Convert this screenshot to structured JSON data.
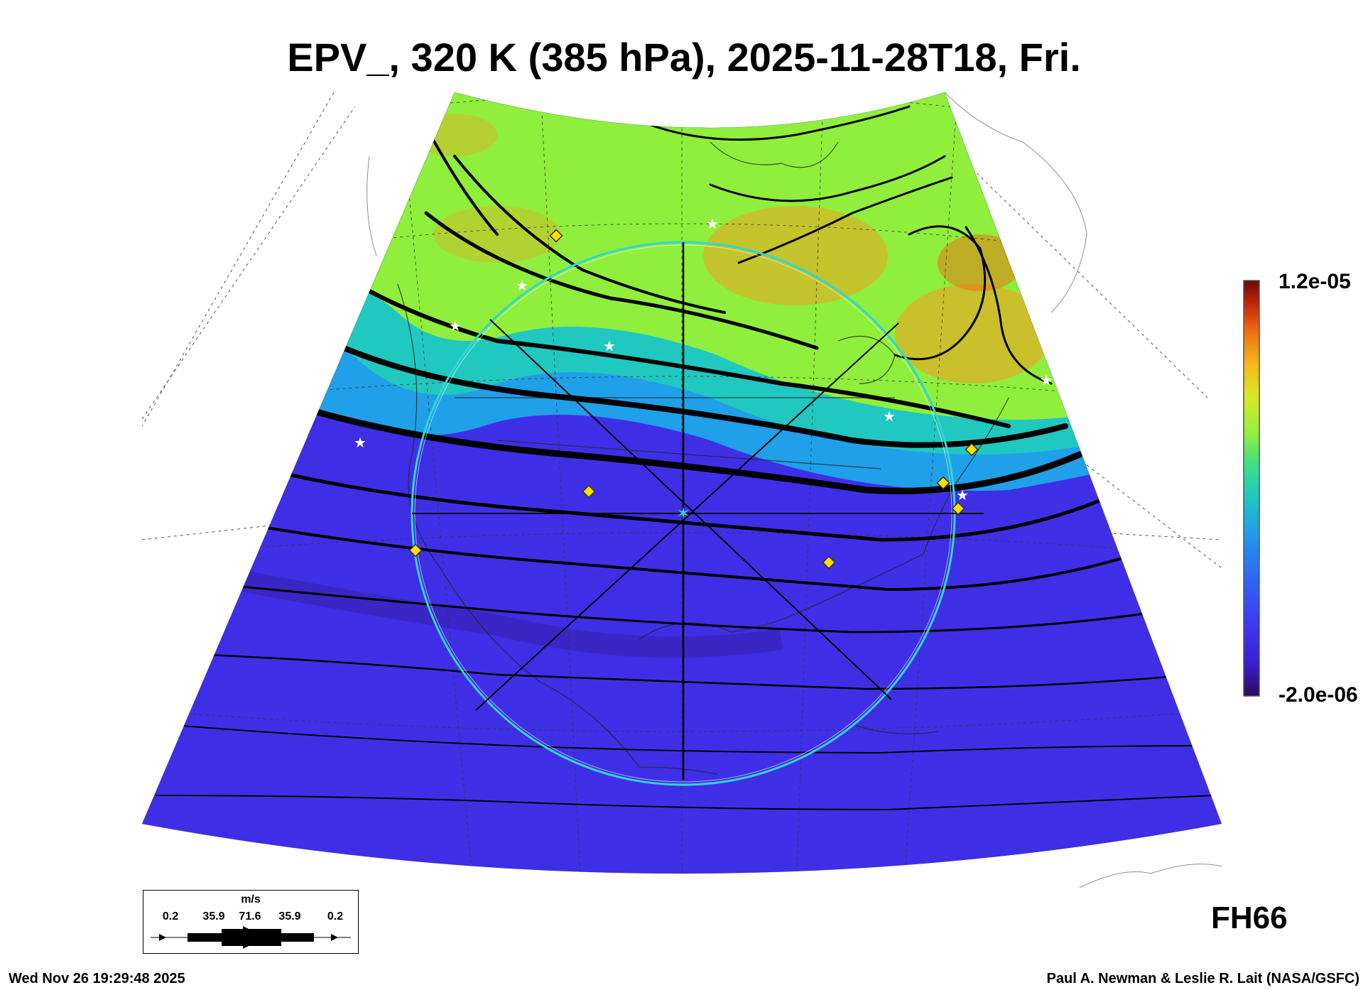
{
  "title": "EPV_, 320 K (385 hPa), 2025-11-28T18, Fri.",
  "colorbar": {
    "max_label": "1.2e-05",
    "min_label": "-2.0e-06",
    "colors": [
      "#2a0a5e",
      "#3b1fd1",
      "#3b3cf0",
      "#2f6df5",
      "#1fa0e8",
      "#20c8c0",
      "#40e080",
      "#9cf03a",
      "#d8e828",
      "#f5b81c",
      "#f06a12",
      "#c42a0a",
      "#6a0808"
    ]
  },
  "wind_legend": {
    "unit": "m/s",
    "labels": [
      "0.2",
      "35.9",
      "71.6",
      "35.9",
      "0.2"
    ]
  },
  "forecast_hour": "FH66",
  "timestamp": "Wed Nov 26 19:29:48 2025",
  "credit": "Paul A. Newman & Leslie R. Lait (NASA/GSFC)",
  "map": {
    "field_colors": {
      "low": "#3e2fe6",
      "mid": "#19b4e6",
      "high": "#8fef3c",
      "peak": "#f0a020"
    },
    "circle_color": "#2fd7d0",
    "station_marker_color": "#ffe000"
  }
}
